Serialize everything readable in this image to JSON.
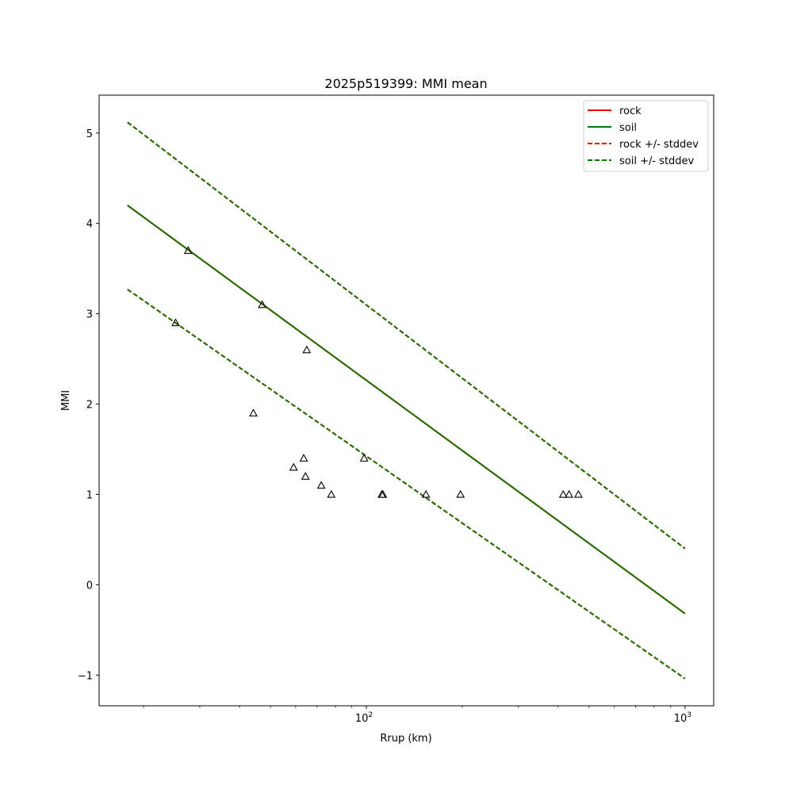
{
  "chart_data": {
    "type": "line",
    "title": "2025p519399: MMI mean",
    "xlabel": "Rrup (km)",
    "ylabel": "MMI",
    "xscale": "log",
    "xlim": [
      14.5,
      1230
    ],
    "ylim": [
      -1.34,
      5.42
    ],
    "x_ticks": [
      {
        "value": 100,
        "base": "10",
        "exp": "2"
      },
      {
        "value": 1000,
        "base": "10",
        "exp": "3"
      }
    ],
    "y_ticks": [
      {
        "value": -1,
        "label": "−1"
      },
      {
        "value": 0,
        "label": "0"
      },
      {
        "value": 1,
        "label": "1"
      },
      {
        "value": 2,
        "label": "2"
      },
      {
        "value": 3,
        "label": "3"
      },
      {
        "value": 4,
        "label": "4"
      },
      {
        "value": 5,
        "label": "5"
      }
    ],
    "grid": false,
    "legend_position": "top-right",
    "series": [
      {
        "name": "rock",
        "color": "#ff0000",
        "style": "solid",
        "x": [
          17.8,
          1000
        ],
        "y": [
          4.2,
          -0.32
        ]
      },
      {
        "name": "soil",
        "color": "#008000",
        "style": "solid",
        "x": [
          17.8,
          1000
        ],
        "y": [
          4.2,
          -0.32
        ]
      },
      {
        "name": "rock +/- stddev",
        "color": "#ff0000",
        "style": "dashed",
        "x": [
          17.8,
          1000
        ],
        "y": [
          5.12,
          0.4
        ],
        "x2": [
          17.8,
          1000
        ],
        "y2": [
          3.27,
          -1.04
        ]
      },
      {
        "name": "soil +/- stddev",
        "color": "#008000",
        "style": "dashed",
        "x": [
          17.8,
          1000
        ],
        "y": [
          5.12,
          0.4
        ],
        "x2": [
          17.8,
          1000
        ],
        "y2": [
          3.27,
          -1.04
        ]
      }
    ],
    "rendered_line_color": "#2a6a00",
    "observations": {
      "marker": "triangle",
      "color": "#000000",
      "points": [
        {
          "x": 25.2,
          "y": 2.9
        },
        {
          "x": 27.6,
          "y": 3.7
        },
        {
          "x": 44.2,
          "y": 1.9
        },
        {
          "x": 47.1,
          "y": 3.1
        },
        {
          "x": 59.1,
          "y": 1.3
        },
        {
          "x": 63.6,
          "y": 1.4
        },
        {
          "x": 64.4,
          "y": 1.2
        },
        {
          "x": 65.0,
          "y": 2.6
        },
        {
          "x": 72.2,
          "y": 1.1
        },
        {
          "x": 77.6,
          "y": 1.0
        },
        {
          "x": 98.4,
          "y": 1.4
        },
        {
          "x": 111.8,
          "y": 1.0
        },
        {
          "x": 112.7,
          "y": 1.0
        },
        {
          "x": 153.8,
          "y": 1.0
        },
        {
          "x": 197.4,
          "y": 1.0
        },
        {
          "x": 414.6,
          "y": 1.0
        },
        {
          "x": 432.5,
          "y": 1.0
        },
        {
          "x": 462.7,
          "y": 1.0
        }
      ]
    }
  }
}
